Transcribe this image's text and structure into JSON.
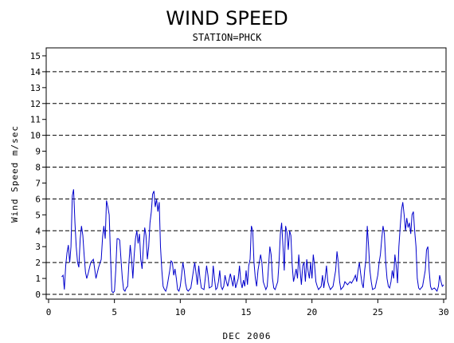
{
  "chart_data": {
    "type": "line",
    "title": "WIND SPEED",
    "subtitle": "STATION=PHCK",
    "xlabel": "DEC 2006",
    "ylabel": "Wind Speed m/sec",
    "xlim": [
      0,
      30
    ],
    "ylim": [
      0,
      15.5
    ],
    "x_ticks": [
      0,
      5,
      10,
      15,
      20,
      25,
      30
    ],
    "y_ticks": [
      0,
      1,
      2,
      3,
      4,
      5,
      6,
      7,
      8,
      9,
      10,
      11,
      12,
      13,
      14,
      15
    ],
    "reference_lines": [
      0,
      2,
      4,
      6,
      8,
      10,
      12,
      14
    ],
    "grid": "dashed horizontal reference lines",
    "colors": {
      "series": "#0000cc",
      "axis": "#000000",
      "reference": "#000000"
    },
    "series": [
      {
        "values": [
          [
            1.0,
            1.1
          ],
          [
            1.1,
            1.2
          ],
          [
            1.2,
            0.3
          ],
          [
            1.3,
            1.8
          ],
          [
            1.4,
            2.6
          ],
          [
            1.5,
            3.1
          ],
          [
            1.6,
            2.0
          ],
          [
            1.7,
            3.0
          ],
          [
            1.8,
            6.2
          ],
          [
            1.9,
            6.6
          ],
          [
            2.0,
            4.5
          ],
          [
            2.1,
            3.0
          ],
          [
            2.2,
            2.0
          ],
          [
            2.3,
            1.7
          ],
          [
            2.4,
            3.5
          ],
          [
            2.5,
            4.3
          ],
          [
            2.6,
            3.7
          ],
          [
            2.7,
            2.5
          ],
          [
            2.8,
            1.4
          ],
          [
            2.9,
            1.0
          ],
          [
            3.0,
            1.3
          ],
          [
            3.2,
            2.0
          ],
          [
            3.4,
            2.2
          ],
          [
            3.6,
            1.0
          ],
          [
            3.8,
            1.7
          ],
          [
            4.0,
            2.2
          ],
          [
            4.1,
            3.6
          ],
          [
            4.2,
            4.3
          ],
          [
            4.3,
            3.5
          ],
          [
            4.4,
            5.9
          ],
          [
            4.5,
            5.5
          ],
          [
            4.6,
            5.0
          ],
          [
            4.7,
            2.5
          ],
          [
            4.8,
            0.2
          ],
          [
            4.9,
            0.1
          ],
          [
            5.0,
            0.2
          ],
          [
            5.1,
            1.5
          ],
          [
            5.2,
            3.5
          ],
          [
            5.3,
            3.5
          ],
          [
            5.4,
            3.4
          ],
          [
            5.5,
            2.2
          ],
          [
            5.6,
            1.0
          ],
          [
            5.7,
            0.3
          ],
          [
            5.8,
            0.2
          ],
          [
            5.9,
            0.4
          ],
          [
            6.0,
            0.5
          ],
          [
            6.1,
            2.0
          ],
          [
            6.2,
            3.1
          ],
          [
            6.3,
            2.2
          ],
          [
            6.4,
            1.0
          ],
          [
            6.5,
            2.5
          ],
          [
            6.6,
            3.5
          ],
          [
            6.7,
            4.0
          ],
          [
            6.8,
            3.2
          ],
          [
            6.9,
            3.8
          ],
          [
            7.0,
            2.2
          ],
          [
            7.1,
            1.6
          ],
          [
            7.2,
            3.0
          ],
          [
            7.3,
            4.2
          ],
          [
            7.4,
            3.7
          ],
          [
            7.5,
            2.2
          ],
          [
            7.6,
            3.0
          ],
          [
            7.7,
            4.5
          ],
          [
            7.8,
            5.2
          ],
          [
            7.9,
            6.3
          ],
          [
            8.0,
            6.5
          ],
          [
            8.1,
            5.5
          ],
          [
            8.2,
            6.0
          ],
          [
            8.3,
            5.2
          ],
          [
            8.4,
            5.8
          ],
          [
            8.5,
            3.0
          ],
          [
            8.6,
            1.5
          ],
          [
            8.7,
            0.5
          ],
          [
            8.8,
            0.3
          ],
          [
            8.9,
            0.2
          ],
          [
            9.0,
            0.5
          ],
          [
            9.2,
            1.5
          ],
          [
            9.3,
            2.1
          ],
          [
            9.4,
            2.0
          ],
          [
            9.5,
            1.2
          ],
          [
            9.6,
            1.6
          ],
          [
            9.7,
            1.0
          ],
          [
            9.8,
            0.3
          ],
          [
            9.9,
            0.2
          ],
          [
            10.0,
            0.5
          ],
          [
            10.1,
            1.2
          ],
          [
            10.2,
            2.0
          ],
          [
            10.3,
            1.5
          ],
          [
            10.4,
            0.7
          ],
          [
            10.5,
            0.3
          ],
          [
            10.6,
            0.2
          ],
          [
            10.8,
            0.4
          ],
          [
            11.0,
            1.5
          ],
          [
            11.1,
            2.0
          ],
          [
            11.2,
            1.3
          ],
          [
            11.3,
            0.6
          ],
          [
            11.4,
            1.8
          ],
          [
            11.5,
            1.0
          ],
          [
            11.6,
            0.4
          ],
          [
            11.8,
            0.3
          ],
          [
            11.9,
            1.0
          ],
          [
            12.0,
            1.8
          ],
          [
            12.1,
            1.2
          ],
          [
            12.2,
            0.4
          ],
          [
            12.4,
            0.5
          ],
          [
            12.5,
            1.8
          ],
          [
            12.6,
            1.0
          ],
          [
            12.7,
            0.3
          ],
          [
            12.8,
            0.4
          ],
          [
            12.9,
            0.8
          ],
          [
            13.0,
            1.5
          ],
          [
            13.1,
            0.5
          ],
          [
            13.2,
            0.3
          ],
          [
            13.3,
            0.5
          ],
          [
            13.4,
            1.2
          ],
          [
            13.5,
            0.8
          ],
          [
            13.6,
            0.5
          ],
          [
            13.8,
            1.3
          ],
          [
            14.0,
            0.5
          ],
          [
            14.1,
            1.2
          ],
          [
            14.2,
            0.4
          ],
          [
            14.4,
            1.0
          ],
          [
            14.5,
            1.8
          ],
          [
            14.6,
            0.8
          ],
          [
            14.7,
            0.4
          ],
          [
            14.8,
            0.9
          ],
          [
            14.9,
            0.5
          ],
          [
            15.0,
            1.5
          ],
          [
            15.1,
            0.6
          ],
          [
            15.2,
            1.8
          ],
          [
            15.3,
            2.2
          ],
          [
            15.4,
            4.3
          ],
          [
            15.5,
            4.0
          ],
          [
            15.6,
            2.0
          ],
          [
            15.7,
            1.0
          ],
          [
            15.8,
            0.5
          ],
          [
            15.9,
            1.5
          ],
          [
            16.0,
            2.0
          ],
          [
            16.1,
            2.5
          ],
          [
            16.2,
            2.0
          ],
          [
            16.3,
            0.8
          ],
          [
            16.5,
            0.3
          ],
          [
            16.6,
            0.5
          ],
          [
            16.8,
            3.0
          ],
          [
            16.9,
            2.5
          ],
          [
            17.0,
            1.0
          ],
          [
            17.1,
            0.4
          ],
          [
            17.2,
            0.3
          ],
          [
            17.4,
            0.8
          ],
          [
            17.5,
            2.0
          ],
          [
            17.6,
            3.8
          ],
          [
            17.7,
            4.5
          ],
          [
            17.8,
            3.0
          ],
          [
            17.9,
            1.5
          ],
          [
            18.0,
            4.3
          ],
          [
            18.1,
            3.9
          ],
          [
            18.2,
            2.8
          ],
          [
            18.3,
            4.0
          ],
          [
            18.4,
            3.7
          ],
          [
            18.5,
            1.8
          ],
          [
            18.6,
            0.8
          ],
          [
            18.7,
            1.2
          ],
          [
            18.8,
            1.6
          ],
          [
            18.9,
            1.0
          ],
          [
            19.0,
            2.5
          ],
          [
            19.1,
            1.5
          ],
          [
            19.2,
            0.6
          ],
          [
            19.3,
            1.8
          ],
          [
            19.4,
            2.0
          ],
          [
            19.5,
            0.8
          ],
          [
            19.6,
            2.2
          ],
          [
            19.7,
            1.5
          ],
          [
            19.8,
            1.0
          ],
          [
            19.9,
            2.0
          ],
          [
            20.0,
            1.0
          ],
          [
            20.1,
            2.5
          ],
          [
            20.2,
            1.8
          ],
          [
            20.3,
            0.8
          ],
          [
            20.4,
            0.5
          ],
          [
            20.5,
            0.3
          ],
          [
            20.7,
            0.5
          ],
          [
            20.8,
            1.2
          ],
          [
            20.9,
            0.4
          ],
          [
            21.0,
            1.0
          ],
          [
            21.1,
            1.8
          ],
          [
            21.2,
            0.8
          ],
          [
            21.3,
            0.5
          ],
          [
            21.4,
            0.3
          ],
          [
            21.6,
            0.5
          ],
          [
            21.8,
            1.5
          ],
          [
            21.9,
            2.7
          ],
          [
            22.0,
            2.0
          ],
          [
            22.1,
            0.8
          ],
          [
            22.2,
            0.3
          ],
          [
            22.4,
            0.5
          ],
          [
            22.5,
            0.8
          ],
          [
            22.7,
            0.6
          ],
          [
            22.9,
            0.8
          ],
          [
            23.0,
            0.7
          ],
          [
            23.2,
            1.0
          ],
          [
            23.3,
            1.2
          ],
          [
            23.4,
            0.8
          ],
          [
            23.5,
            1.5
          ],
          [
            23.6,
            2.0
          ],
          [
            23.7,
            1.3
          ],
          [
            23.8,
            0.7
          ],
          [
            23.9,
            0.4
          ],
          [
            24.0,
            1.5
          ],
          [
            24.1,
            2.2
          ],
          [
            24.2,
            4.3
          ],
          [
            24.3,
            3.0
          ],
          [
            24.4,
            1.5
          ],
          [
            24.5,
            0.8
          ],
          [
            24.6,
            0.3
          ],
          [
            24.8,
            0.4
          ],
          [
            25.0,
            1.2
          ],
          [
            25.1,
            2.0
          ],
          [
            25.2,
            2.5
          ],
          [
            25.3,
            3.5
          ],
          [
            25.4,
            4.3
          ],
          [
            25.5,
            3.8
          ],
          [
            25.6,
            2.0
          ],
          [
            25.7,
            1.0
          ],
          [
            25.8,
            0.5
          ],
          [
            25.9,
            0.4
          ],
          [
            26.0,
            0.8
          ],
          [
            26.1,
            1.5
          ],
          [
            26.2,
            1.0
          ],
          [
            26.3,
            2.5
          ],
          [
            26.4,
            1.8
          ],
          [
            26.5,
            0.7
          ],
          [
            26.6,
            3.0
          ],
          [
            26.7,
            4.2
          ],
          [
            26.8,
            5.3
          ],
          [
            26.9,
            5.8
          ],
          [
            27.0,
            5.0
          ],
          [
            27.1,
            4.0
          ],
          [
            27.2,
            4.8
          ],
          [
            27.3,
            4.2
          ],
          [
            27.4,
            4.5
          ],
          [
            27.5,
            3.8
          ],
          [
            27.6,
            5.0
          ],
          [
            27.7,
            5.2
          ],
          [
            27.8,
            4.0
          ],
          [
            27.9,
            3.0
          ],
          [
            28.0,
            1.0
          ],
          [
            28.1,
            0.4
          ],
          [
            28.2,
            0.3
          ],
          [
            28.4,
            0.5
          ],
          [
            28.6,
            1.5
          ],
          [
            28.7,
            2.8
          ],
          [
            28.8,
            3.0
          ],
          [
            28.9,
            1.5
          ],
          [
            29.0,
            0.5
          ],
          [
            29.1,
            0.3
          ],
          [
            29.3,
            0.4
          ],
          [
            29.5,
            0.2
          ],
          [
            29.6,
            0.5
          ],
          [
            29.7,
            1.2
          ],
          [
            29.8,
            0.8
          ],
          [
            29.9,
            0.5
          ],
          [
            30.0,
            0.6
          ]
        ]
      }
    ]
  }
}
